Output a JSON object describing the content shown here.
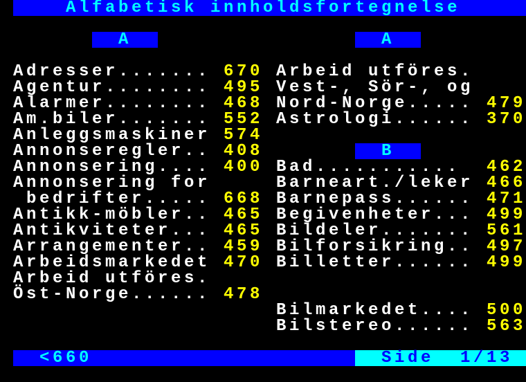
{
  "header": {
    "title": "Alfabetisk innholdsfortegnelse"
  },
  "sections": {
    "left_letter": "A",
    "right_letter_a": "A",
    "right_letter_b": "B"
  },
  "left_entries": [
    {
      "label": "Adresser.......",
      "page": "670"
    },
    {
      "label": "Agentur........",
      "page": "495"
    },
    {
      "label": "Alarmer........",
      "page": "468"
    },
    {
      "label": "Am.biler.......",
      "page": "552"
    },
    {
      "label": "Anleggsmaskiner",
      "page": "574"
    },
    {
      "label": "Annonseregler..",
      "page": "408"
    },
    {
      "label": "Annonsering....",
      "page": "400"
    },
    {
      "label": "Annonsering for",
      "page": ""
    },
    {
      "label": " bedrifter.....",
      "page": "668"
    },
    {
      "label": "Antikk-möbler..",
      "page": "465"
    },
    {
      "label": "Antikviteter...",
      "page": "465"
    },
    {
      "label": "Arrangementer..",
      "page": "459"
    },
    {
      "label": "Arbeidsmarkedet",
      "page": "470"
    },
    {
      "label": "Arbeid utföres.",
      "page": ""
    },
    {
      "label": "Öst-Norge......",
      "page": "478"
    }
  ],
  "right_entries_a": [
    {
      "label": "Arbeid utföres.",
      "page": ""
    },
    {
      "label": "Vest-, Sör-, og",
      "page": ""
    },
    {
      "label": "Nord-Norge.....",
      "page": "479"
    },
    {
      "label": "Astrologi......",
      "page": "370"
    }
  ],
  "right_entries_b": [
    {
      "label": "Bad...........",
      "page": "462"
    },
    {
      "label": "Barneart./leker",
      "page": "466"
    },
    {
      "label": "Barnepass......",
      "page": "471"
    },
    {
      "label": "Begivenheter...",
      "page": "499"
    },
    {
      "label": "Bildeler.......",
      "page": "561"
    },
    {
      "label": "Bilforsikring..",
      "page": "497"
    },
    {
      "label": "Billetter......",
      "page": "499"
    }
  ],
  "right_entries_b2": [
    {
      "label": "Bilmarkedet....",
      "page": "500"
    },
    {
      "label": "Bilstereo......",
      "page": "563"
    }
  ],
  "footer": {
    "prev": "<660",
    "page_indicator": "Side  1/13"
  },
  "colors": {
    "blue": "#0000ff",
    "cyan": "#00ffff",
    "yellow": "#ffff00",
    "white": "#ffffff"
  }
}
